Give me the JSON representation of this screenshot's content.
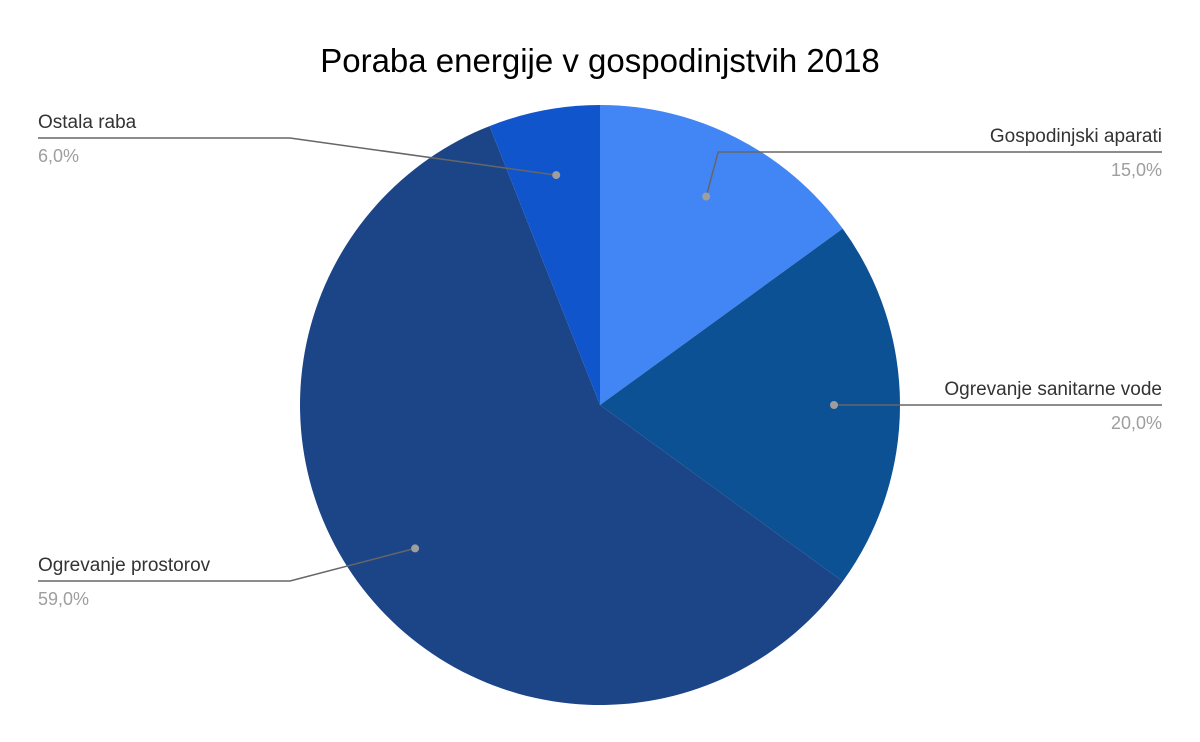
{
  "chart_data": {
    "type": "pie",
    "title": "Poraba energije v gospodinjstvih 2018",
    "start_angle": "12 o'clock, clockwise",
    "slices": [
      {
        "name": "Gospodinjski aparati",
        "value": 15.0,
        "label": "15,0%",
        "color": "#4285f4"
      },
      {
        "name": "Ogrevanje sanitarne vode",
        "value": 20.0,
        "label": "20,0%",
        "color": "#0d5195"
      },
      {
        "name": "Ogrevanje prostorov",
        "value": 59.0,
        "label": "59,0%",
        "color": "#1c4587"
      },
      {
        "name": "Ostala raba",
        "value": 6.0,
        "label": "6,0%",
        "color": "#1155cc"
      }
    ],
    "legend": "none (labels with leader lines)"
  }
}
